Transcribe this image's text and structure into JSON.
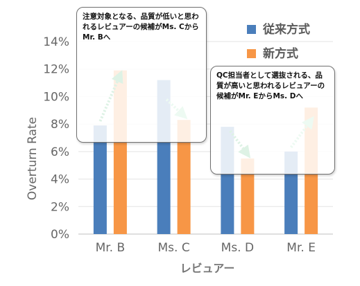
{
  "chart_data": {
    "type": "bar",
    "categories": [
      "Mr. B",
      "Ms. C",
      "Ms. D",
      "Mr. E"
    ],
    "series": [
      {
        "name": "従来方式",
        "color": "#4a7ebb",
        "values": [
          7.9,
          11.2,
          7.8,
          6.0
        ]
      },
      {
        "name": "新方式",
        "color": "#f79646",
        "values": [
          11.9,
          8.3,
          5.5,
          9.2
        ]
      }
    ],
    "xlabel": "レビュアー",
    "ylabel": "Overturn Rate",
    "ylim": [
      0,
      14
    ],
    "yticks": [
      "0%",
      "2%",
      "4%",
      "6%",
      "8%",
      "10%",
      "12%",
      "14%"
    ],
    "grid": true,
    "legend": "top-right",
    "arrow_color": "#22aa55",
    "annotations": [
      {
        "text": "注意対象となる、品質が低いと思われるレビュアーの候補がMs. CからMr. Bへ"
      },
      {
        "text": "QC担当者として選抜される、品質が高いと思われるレビュアーの候補がMr. EからMs. Dへ"
      }
    ]
  }
}
